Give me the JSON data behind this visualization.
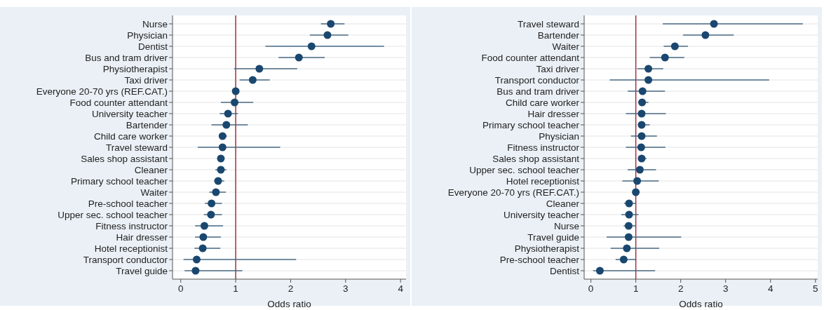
{
  "chart_data": [
    {
      "type": "scatter",
      "orientation": "horizontal",
      "xlabel": "Odds ratio",
      "marker": "circle",
      "grid": "y",
      "xlim": [
        -0.15,
        4.1
      ],
      "xticks": [
        0,
        1,
        2,
        3,
        4
      ],
      "categories": [
        "Nurse",
        "Physician",
        "Dentist",
        "Bus and tram driver",
        "Physiotherapist",
        "Taxi driver",
        "Everyone 20-70 yrs (REF.CAT.)",
        "Food counter attendant",
        "University teacher",
        "Bartender",
        "Child care worker",
        "Travel steward",
        "Sales shop assistant",
        "Cleaner",
        "Primary school teacher",
        "Waiter",
        "Pre-school teacher",
        "Upper sec. school teacher",
        "Fitness instructor",
        "Hair dresser",
        "Hotel receptionist",
        "Transport conductor",
        "Travel guide"
      ],
      "series": [
        {
          "color": "#1a476f",
          "values": [
            2.73,
            2.67,
            2.38,
            2.15,
            1.43,
            1.31,
            1.0,
            0.98,
            0.86,
            0.83,
            0.76,
            0.76,
            0.73,
            0.73,
            0.68,
            0.64,
            0.56,
            0.55,
            0.43,
            0.41,
            0.4,
            0.29,
            0.27
          ],
          "errors": [
            [
              2.55,
              2.98
            ],
            [
              2.35,
              3.05
            ],
            [
              1.54,
              3.7
            ],
            [
              1.78,
              2.62
            ],
            [
              0.97,
              2.12
            ],
            [
              1.07,
              1.62
            ],
            null,
            [
              0.73,
              1.32
            ],
            [
              0.71,
              1.04
            ],
            [
              0.56,
              1.22
            ],
            [
              0.7,
              0.84
            ],
            [
              0.31,
              1.81
            ],
            [
              0.68,
              0.79
            ],
            [
              0.63,
              0.83
            ],
            [
              0.61,
              0.79
            ],
            [
              0.52,
              0.82
            ],
            [
              0.44,
              0.75
            ],
            [
              0.42,
              0.75
            ],
            [
              0.26,
              0.77
            ],
            [
              0.26,
              0.73
            ],
            [
              0.25,
              0.72
            ],
            [
              0.05,
              2.1
            ],
            [
              0.07,
              1.12
            ]
          ]
        }
      ],
      "ref_lines": [
        {
          "axis": "x",
          "value": 1,
          "color": "#a03040"
        }
      ]
    },
    {
      "type": "scatter",
      "orientation": "horizontal",
      "xlabel": "Odds ratio",
      "marker": "circle",
      "grid": "y",
      "xlim": [
        -0.15,
        5.05
      ],
      "xticks": [
        0,
        1,
        2,
        3,
        4,
        5
      ],
      "categories": [
        "Travel steward",
        "Bartender",
        "Waiter",
        "Food counter attendant",
        "Taxi driver",
        "Transport conductor",
        "Bus and tram driver",
        "Child care worker",
        "Hair dresser",
        "Primary school teacher",
        "Physician",
        "Fitness instructor",
        "Sales shop assistant",
        "Upper sec. school teacher",
        "Hotel receptionist",
        "Everyone 20-70 yrs (REF.CAT.)",
        "Cleaner",
        "University teacher",
        "Nurse",
        "Travel guide",
        "Physiotherapist",
        "Pre-school teacher",
        "Dentist"
      ],
      "series": [
        {
          "color": "#1a476f",
          "values": [
            2.74,
            2.55,
            1.87,
            1.65,
            1.28,
            1.28,
            1.15,
            1.14,
            1.13,
            1.13,
            1.13,
            1.12,
            1.13,
            1.09,
            1.03,
            1.0,
            0.85,
            0.85,
            0.84,
            0.84,
            0.8,
            0.73,
            0.2
          ],
          "errors": [
            [
              1.6,
              4.72
            ],
            [
              2.05,
              3.18
            ],
            [
              1.62,
              2.16
            ],
            [
              1.31,
              2.08
            ],
            [
              1.03,
              1.61
            ],
            [
              0.42,
              3.97
            ],
            [
              0.82,
              1.65
            ],
            [
              1.05,
              1.28
            ],
            [
              0.78,
              1.67
            ],
            [
              1.05,
              1.31
            ],
            [
              0.89,
              1.47
            ],
            [
              0.78,
              1.66
            ],
            [
              1.06,
              1.24
            ],
            [
              0.82,
              1.45
            ],
            [
              0.7,
              1.51
            ],
            null,
            [
              0.74,
              0.99
            ],
            [
              0.68,
              1.06
            ],
            [
              0.73,
              0.99
            ],
            [
              0.35,
              2.01
            ],
            [
              0.44,
              1.52
            ],
            [
              0.55,
              0.99
            ],
            [
              0.05,
              1.43
            ]
          ]
        }
      ],
      "ref_lines": [
        {
          "axis": "x",
          "value": 1,
          "color": "#a03040"
        }
      ]
    }
  ]
}
